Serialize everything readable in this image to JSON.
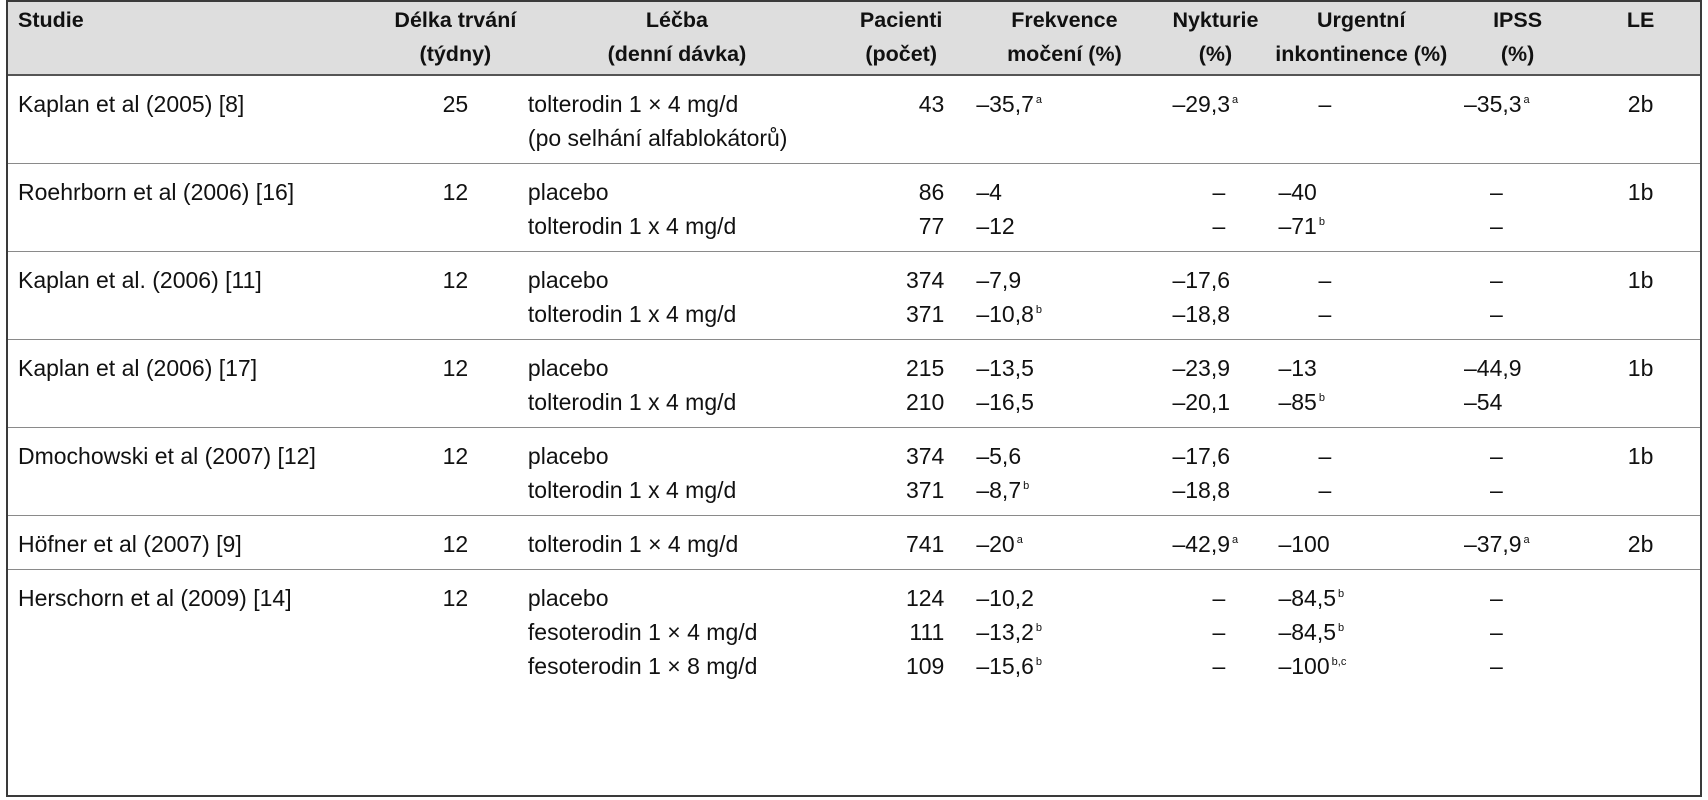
{
  "headers": [
    {
      "lines": [
        "Studie"
      ]
    },
    {
      "lines": [
        "Délka trvání",
        "(týdny)"
      ]
    },
    {
      "lines": [
        "Léčba",
        "(denní dávka)"
      ]
    },
    {
      "lines": [
        "Pacienti",
        "(počet)"
      ]
    },
    {
      "lines": [
        "Frekvence",
        "močení (%)"
      ]
    },
    {
      "lines": [
        "Nykturie",
        "(%)"
      ]
    },
    {
      "lines": [
        "Urgentní",
        "inkontinence (%)"
      ]
    },
    {
      "lines": [
        "IPSS",
        "(%)"
      ]
    },
    {
      "lines": [
        "LE"
      ]
    }
  ],
  "rows": [
    {
      "study": "Kaplan et al (2005) [8]",
      "weeks": "25",
      "le": "2b",
      "arms": [
        {
          "treatment": [
            "tolterodin 1 × 4 mg/d",
            "(po selhání alfablokátorů)"
          ],
          "patients": "43",
          "frequency": {
            "v": "–35,7",
            "s": "a"
          },
          "nocturia": {
            "v": "–29,3",
            "s": "a"
          },
          "urge": {
            "v": "–",
            "s": ""
          },
          "ipss": {
            "v": "–35,3",
            "s": "a"
          }
        }
      ]
    },
    {
      "study": "Roehrborn et al (2006) [16]",
      "weeks": "12",
      "le": "1b",
      "arms": [
        {
          "treatment": [
            "placebo"
          ],
          "patients": "86",
          "frequency": {
            "v": "–4",
            "s": ""
          },
          "nocturia": {
            "v": "–",
            "s": ""
          },
          "urge": {
            "v": "–40",
            "s": ""
          },
          "ipss": {
            "v": "–",
            "s": ""
          }
        },
        {
          "treatment": [
            "tolterodin 1 x 4 mg/d"
          ],
          "patients": "77",
          "frequency": {
            "v": "–12",
            "s": ""
          },
          "nocturia": {
            "v": "–",
            "s": ""
          },
          "urge": {
            "v": "–71",
            "s": "b"
          },
          "ipss": {
            "v": "–",
            "s": ""
          }
        }
      ]
    },
    {
      "study": "Kaplan et al. (2006) [11]",
      "weeks": "12",
      "le": "1b",
      "arms": [
        {
          "treatment": [
            "placebo"
          ],
          "patients": "374",
          "frequency": {
            "v": "–7,9",
            "s": ""
          },
          "nocturia": {
            "v": "–17,6",
            "s": ""
          },
          "urge": {
            "v": "–",
            "s": ""
          },
          "ipss": {
            "v": "–",
            "s": ""
          }
        },
        {
          "treatment": [
            "tolterodin 1 x 4 mg/d"
          ],
          "patients": "371",
          "frequency": {
            "v": "–10,8",
            "s": "b"
          },
          "nocturia": {
            "v": "–18,8",
            "s": ""
          },
          "urge": {
            "v": "–",
            "s": ""
          },
          "ipss": {
            "v": "–",
            "s": ""
          }
        }
      ]
    },
    {
      "study": "Kaplan et al (2006) [17]",
      "weeks": "12",
      "le": "1b",
      "arms": [
        {
          "treatment": [
            "placebo"
          ],
          "patients": "215",
          "frequency": {
            "v": "–13,5",
            "s": ""
          },
          "nocturia": {
            "v": "–23,9",
            "s": ""
          },
          "urge": {
            "v": "–13",
            "s": ""
          },
          "ipss": {
            "v": "–44,9",
            "s": ""
          }
        },
        {
          "treatment": [
            "tolterodin 1 x 4 mg/d"
          ],
          "patients": "210",
          "frequency": {
            "v": "–16,5",
            "s": ""
          },
          "nocturia": {
            "v": "–20,1",
            "s": ""
          },
          "urge": {
            "v": "–85",
            "s": "b"
          },
          "ipss": {
            "v": "–54",
            "s": ""
          }
        }
      ]
    },
    {
      "study": "Dmochowski et al (2007) [12]",
      "weeks": "12",
      "le": "1b",
      "arms": [
        {
          "treatment": [
            "placebo"
          ],
          "patients": "374",
          "frequency": {
            "v": "–5,6",
            "s": ""
          },
          "nocturia": {
            "v": "–17,6",
            "s": ""
          },
          "urge": {
            "v": "–",
            "s": ""
          },
          "ipss": {
            "v": "–",
            "s": ""
          }
        },
        {
          "treatment": [
            "tolterodin 1 x 4 mg/d"
          ],
          "patients": "371",
          "frequency": {
            "v": "–8,7",
            "s": "b"
          },
          "nocturia": {
            "v": "–18,8",
            "s": ""
          },
          "urge": {
            "v": "–",
            "s": ""
          },
          "ipss": {
            "v": "–",
            "s": ""
          }
        }
      ]
    },
    {
      "study": "Höfner et al (2007) [9]",
      "weeks": "12",
      "le": "2b",
      "arms": [
        {
          "treatment": [
            "tolterodin 1 × 4 mg/d"
          ],
          "patients": "741",
          "frequency": {
            "v": "–20",
            "s": "a"
          },
          "nocturia": {
            "v": "–42,9",
            "s": "a"
          },
          "urge": {
            "v": "–100",
            "s": ""
          },
          "ipss": {
            "v": "–37,9",
            "s": "a"
          }
        }
      ]
    },
    {
      "study": "Herschorn et al (2009) [14]",
      "weeks": "12",
      "le": "",
      "arms": [
        {
          "treatment": [
            "placebo"
          ],
          "patients": "124",
          "frequency": {
            "v": "–10,2",
            "s": ""
          },
          "nocturia": {
            "v": "–",
            "s": ""
          },
          "urge": {
            "v": "–84,5",
            "s": "b"
          },
          "ipss": {
            "v": "–",
            "s": ""
          }
        },
        {
          "treatment": [
            "fesoterodin 1 × 4 mg/d"
          ],
          "patients": "111",
          "frequency": {
            "v": "–13,2",
            "s": "b"
          },
          "nocturia": {
            "v": "–",
            "s": ""
          },
          "urge": {
            "v": "–84,5",
            "s": "b"
          },
          "ipss": {
            "v": "–",
            "s": ""
          }
        },
        {
          "treatment": [
            "fesoterodin 1 × 8 mg/d"
          ],
          "patients": "109",
          "frequency": {
            "v": "–15,6",
            "s": "b"
          },
          "nocturia": {
            "v": "–",
            "s": ""
          },
          "urge": {
            "v": "–100",
            "s": "b,c"
          },
          "ipss": {
            "v": "–",
            "s": ""
          }
        }
      ]
    }
  ]
}
